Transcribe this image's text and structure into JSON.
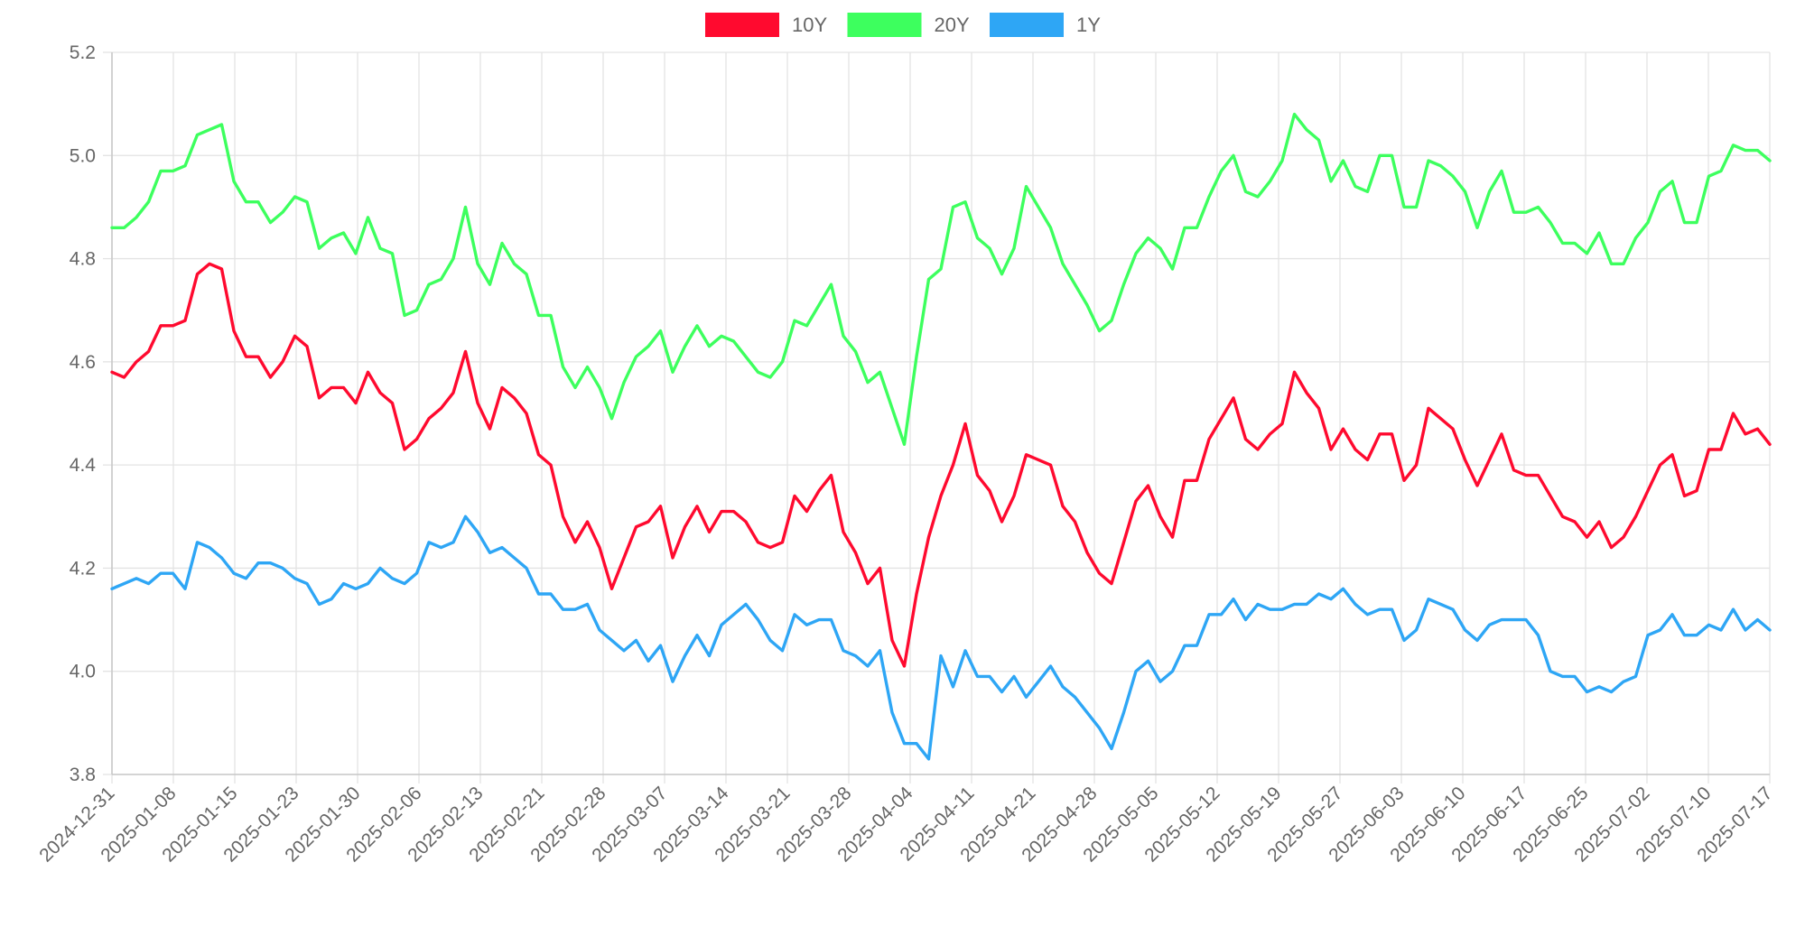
{
  "chart_data": {
    "type": "line",
    "title": "",
    "xlabel": "",
    "ylabel": "",
    "ylim": [
      3.8,
      5.2
    ],
    "y_ticks": [
      "3.8",
      "4.0",
      "4.2",
      "4.4",
      "4.6",
      "4.8",
      "5.0",
      "5.2"
    ],
    "grid": true,
    "legend_position": "top-center",
    "x_tick_labels": [
      "2024-12-31",
      "2025-01-08",
      "2025-01-15",
      "2025-01-23",
      "2025-01-30",
      "2025-02-06",
      "2025-02-13",
      "2025-02-21",
      "2025-02-28",
      "2025-03-07",
      "2025-03-14",
      "2025-03-21",
      "2025-03-28",
      "2025-04-04",
      "2025-04-11",
      "2025-04-21",
      "2025-04-28",
      "2025-05-05",
      "2025-05-12",
      "2025-05-19",
      "2025-05-27",
      "2025-06-03",
      "2025-06-10",
      "2025-06-17",
      "2025-06-25",
      "2025-07-02",
      "2025-07-10",
      "2025-07-17"
    ],
    "series": [
      {
        "name": "10Y",
        "color": "#ff0a2f",
        "values": [
          4.58,
          4.57,
          4.6,
          4.62,
          4.67,
          4.67,
          4.68,
          4.77,
          4.79,
          4.78,
          4.66,
          4.61,
          4.61,
          4.57,
          4.6,
          4.65,
          4.63,
          4.53,
          4.55,
          4.55,
          4.52,
          4.58,
          4.54,
          4.52,
          4.43,
          4.45,
          4.49,
          4.51,
          4.54,
          4.62,
          4.52,
          4.47,
          4.55,
          4.53,
          4.5,
          4.42,
          4.4,
          4.3,
          4.25,
          4.29,
          4.24,
          4.16,
          4.22,
          4.28,
          4.29,
          4.32,
          4.22,
          4.28,
          4.32,
          4.27,
          4.31,
          4.31,
          4.29,
          4.25,
          4.24,
          4.25,
          4.34,
          4.31,
          4.35,
          4.38,
          4.27,
          4.23,
          4.17,
          4.2,
          4.06,
          4.01,
          4.15,
          4.26,
          4.34,
          4.4,
          4.48,
          4.38,
          4.35,
          4.29,
          4.34,
          4.42,
          4.41,
          4.4,
          4.32,
          4.29,
          4.23,
          4.19,
          4.17,
          4.25,
          4.33,
          4.36,
          4.3,
          4.26,
          4.37,
          4.37,
          4.45,
          4.49,
          4.53,
          4.45,
          4.43,
          4.46,
          4.48,
          4.58,
          4.54,
          4.51,
          4.43,
          4.47,
          4.43,
          4.41,
          4.46,
          4.46,
          4.37,
          4.4,
          4.51,
          4.49,
          4.47,
          4.41,
          4.36,
          4.41,
          4.46,
          4.39,
          4.38,
          4.38,
          4.34,
          4.3,
          4.29,
          4.26,
          4.29,
          4.24,
          4.26,
          4.3,
          4.35,
          4.4,
          4.42,
          4.34,
          4.35,
          4.43,
          4.43,
          4.5,
          4.46,
          4.47,
          4.44
        ]
      },
      {
        "name": "20Y",
        "color": "#3dff5e",
        "values": [
          4.86,
          4.86,
          4.88,
          4.91,
          4.97,
          4.97,
          4.98,
          5.04,
          5.05,
          5.06,
          4.95,
          4.91,
          4.91,
          4.87,
          4.89,
          4.92,
          4.91,
          4.82,
          4.84,
          4.85,
          4.81,
          4.88,
          4.82,
          4.81,
          4.69,
          4.7,
          4.75,
          4.76,
          4.8,
          4.9,
          4.79,
          4.75,
          4.83,
          4.79,
          4.77,
          4.69,
          4.69,
          4.59,
          4.55,
          4.59,
          4.55,
          4.49,
          4.56,
          4.61,
          4.63,
          4.66,
          4.58,
          4.63,
          4.67,
          4.63,
          4.65,
          4.64,
          4.61,
          4.58,
          4.57,
          4.6,
          4.68,
          4.67,
          4.71,
          4.75,
          4.65,
          4.62,
          4.56,
          4.58,
          4.51,
          4.44,
          4.61,
          4.76,
          4.78,
          4.9,
          4.91,
          4.84,
          4.82,
          4.77,
          4.82,
          4.94,
          4.9,
          4.86,
          4.79,
          4.75,
          4.71,
          4.66,
          4.68,
          4.75,
          4.81,
          4.84,
          4.82,
          4.78,
          4.86,
          4.86,
          4.92,
          4.97,
          5.0,
          4.93,
          4.92,
          4.95,
          4.99,
          5.08,
          5.05,
          5.03,
          4.95,
          4.99,
          4.94,
          4.93,
          5.0,
          5.0,
          4.9,
          4.9,
          4.99,
          4.98,
          4.96,
          4.93,
          4.86,
          4.93,
          4.97,
          4.89,
          4.89,
          4.9,
          4.87,
          4.83,
          4.83,
          4.81,
          4.85,
          4.79,
          4.79,
          4.84,
          4.87,
          4.93,
          4.95,
          4.87,
          4.87,
          4.96,
          4.97,
          5.02,
          5.01,
          5.01,
          4.99
        ]
      },
      {
        "name": "1Y",
        "color": "#2ea6f5",
        "values": [
          4.16,
          4.17,
          4.18,
          4.17,
          4.19,
          4.19,
          4.16,
          4.25,
          4.24,
          4.22,
          4.19,
          4.18,
          4.21,
          4.21,
          4.2,
          4.18,
          4.17,
          4.13,
          4.14,
          4.17,
          4.16,
          4.17,
          4.2,
          4.18,
          4.17,
          4.19,
          4.25,
          4.24,
          4.25,
          4.3,
          4.27,
          4.23,
          4.24,
          4.22,
          4.2,
          4.15,
          4.15,
          4.12,
          4.12,
          4.13,
          4.08,
          4.06,
          4.04,
          4.06,
          4.02,
          4.05,
          3.98,
          4.03,
          4.07,
          4.03,
          4.09,
          4.11,
          4.13,
          4.1,
          4.06,
          4.04,
          4.11,
          4.09,
          4.1,
          4.1,
          4.04,
          4.03,
          4.01,
          4.04,
          3.92,
          3.86,
          3.86,
          3.83,
          4.03,
          3.97,
          4.04,
          3.99,
          3.99,
          3.96,
          3.99,
          3.95,
          3.98,
          4.01,
          3.97,
          3.95,
          3.92,
          3.89,
          3.85,
          3.92,
          4.0,
          4.02,
          3.98,
          4.0,
          4.05,
          4.05,
          4.11,
          4.11,
          4.14,
          4.1,
          4.13,
          4.12,
          4.12,
          4.13,
          4.13,
          4.15,
          4.14,
          4.16,
          4.13,
          4.11,
          4.12,
          4.12,
          4.06,
          4.08,
          4.14,
          4.13,
          4.12,
          4.08,
          4.06,
          4.09,
          4.1,
          4.1,
          4.1,
          4.07,
          4.0,
          3.99,
          3.99,
          3.96,
          3.97,
          3.96,
          3.98,
          3.99,
          4.07,
          4.08,
          4.11,
          4.07,
          4.07,
          4.09,
          4.08,
          4.12,
          4.08,
          4.1,
          4.08
        ]
      }
    ]
  }
}
